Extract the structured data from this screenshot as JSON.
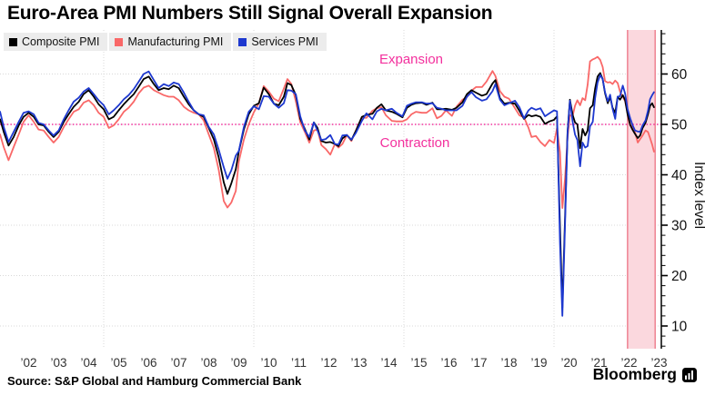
{
  "footer": {
    "source": "Source: S&P Global and Hamburg Commercial Bank",
    "brand": "Bloomberg"
  },
  "chart_data": {
    "type": "line",
    "title": "Euro-Area PMI Numbers Still Signal Overall Expansion",
    "ylabel": "Index level",
    "ylim": [
      5,
      69
    ],
    "yticks": [
      10,
      20,
      30,
      40,
      50,
      60
    ],
    "x_gridline_years": [
      2005,
      2010,
      2015,
      2020
    ],
    "xtick_labels": [
      "’02",
      "’03",
      "’04",
      "’05",
      "’06",
      "’07",
      "’08",
      "’09",
      "’10",
      "’11",
      "’12",
      "’13",
      "’14",
      "’15",
      "’16",
      "’17",
      "’18",
      "’19",
      "’20",
      "’21",
      "’22",
      "’23"
    ],
    "xtick_start_year": 2002,
    "threshold": {
      "value": 50,
      "label_above": "Expansion",
      "label_below": "Contraction"
    },
    "highlight_band": {
      "x_start": 2022.45,
      "x_end": 2023.37
    },
    "colors": {
      "magenta": "#f3309d",
      "grid": "#d8d8d8",
      "band_fill": "#fbd8de",
      "band_edge": "#ee8292",
      "axis": "#000000",
      "legend_bg": "#ececec"
    },
    "series": [
      {
        "name": "Composite PMI",
        "color": "#000000"
      },
      {
        "name": "Manufacturing PMI",
        "color": "#f96868"
      },
      {
        "name": "Services PMI",
        "color": "#1d38cf"
      }
    ],
    "points_format": [
      "year",
      "composite",
      "manufacturing",
      "services"
    ],
    "points": [
      [
        2001.55,
        51.0,
        48.0,
        52.5
      ],
      [
        2001.67,
        48.5,
        45.5,
        49.5
      ],
      [
        2001.83,
        45.8,
        42.9,
        46.5
      ],
      [
        2002.0,
        47.5,
        45.5,
        48.5
      ],
      [
        2002.17,
        49.8,
        48.0,
        50.5
      ],
      [
        2002.33,
        51.5,
        50.5,
        52.3
      ],
      [
        2002.5,
        52.3,
        51.8,
        52.6
      ],
      [
        2002.67,
        51.5,
        50.5,
        52.0
      ],
      [
        2002.83,
        50.0,
        49.0,
        50.3
      ],
      [
        2003.0,
        49.8,
        48.8,
        50.0
      ],
      [
        2003.17,
        48.5,
        47.5,
        48.8
      ],
      [
        2003.33,
        47.5,
        46.4,
        47.8
      ],
      [
        2003.5,
        48.5,
        47.5,
        48.8
      ],
      [
        2003.67,
        50.5,
        49.5,
        51.0
      ],
      [
        2003.83,
        52.0,
        51.0,
        52.8
      ],
      [
        2004.0,
        53.5,
        52.5,
        54.5
      ],
      [
        2004.17,
        54.5,
        53.0,
        55.3
      ],
      [
        2004.33,
        56.0,
        54.3,
        56.5
      ],
      [
        2004.5,
        56.8,
        54.8,
        57.2
      ],
      [
        2004.67,
        55.5,
        53.8,
        56.0
      ],
      [
        2004.83,
        54.0,
        52.3,
        54.8
      ],
      [
        2005.0,
        53.0,
        51.5,
        53.8
      ],
      [
        2005.17,
        51.0,
        49.3,
        52.0
      ],
      [
        2005.33,
        51.5,
        49.8,
        52.8
      ],
      [
        2005.5,
        52.8,
        51.0,
        53.8
      ],
      [
        2005.67,
        54.0,
        52.5,
        55.0
      ],
      [
        2005.83,
        55.0,
        53.3,
        55.8
      ],
      [
        2006.0,
        56.0,
        54.5,
        57.0
      ],
      [
        2006.17,
        57.5,
        56.2,
        58.5
      ],
      [
        2006.33,
        59.0,
        57.3,
        60.0
      ],
      [
        2006.5,
        59.5,
        57.7,
        60.5
      ],
      [
        2006.67,
        58.0,
        56.8,
        58.8
      ],
      [
        2006.83,
        56.8,
        56.3,
        57.2
      ],
      [
        2007.0,
        57.2,
        55.8,
        58.0
      ],
      [
        2007.17,
        57.0,
        55.5,
        57.6
      ],
      [
        2007.33,
        57.7,
        55.5,
        58.3
      ],
      [
        2007.5,
        57.2,
        54.8,
        58.0
      ],
      [
        2007.67,
        55.5,
        53.5,
        56.3
      ],
      [
        2007.83,
        54.0,
        52.8,
        54.5
      ],
      [
        2008.0,
        52.8,
        52.3,
        52.8
      ],
      [
        2008.17,
        52.0,
        52.0,
        52.0
      ],
      [
        2008.33,
        51.5,
        50.8,
        51.8
      ],
      [
        2008.5,
        49.3,
        48.0,
        49.5
      ],
      [
        2008.67,
        47.0,
        45.3,
        48.0
      ],
      [
        2008.83,
        43.5,
        41.0,
        45.0
      ],
      [
        2009.0,
        38.5,
        34.8,
        41.5
      ],
      [
        2009.12,
        36.2,
        33.5,
        39.2
      ],
      [
        2009.25,
        38.3,
        34.5,
        40.9
      ],
      [
        2009.4,
        41.1,
        36.8,
        43.8
      ],
      [
        2009.5,
        44.6,
        42.6,
        44.7
      ],
      [
        2009.67,
        49.0,
        47.0,
        49.5
      ],
      [
        2009.83,
        52.0,
        50.0,
        52.5
      ],
      [
        2010.0,
        53.7,
        52.4,
        53.6
      ],
      [
        2010.17,
        54.2,
        54.2,
        53.0
      ],
      [
        2010.33,
        57.3,
        57.6,
        55.6
      ],
      [
        2010.5,
        56.0,
        56.5,
        55.5
      ],
      [
        2010.67,
        54.1,
        55.1,
        54.1
      ],
      [
        2010.83,
        53.8,
        54.6,
        53.3
      ],
      [
        2011.0,
        55.5,
        57.1,
        54.2
      ],
      [
        2011.12,
        58.2,
        59.0,
        56.8
      ],
      [
        2011.25,
        57.8,
        58.0,
        56.7
      ],
      [
        2011.4,
        55.8,
        54.6,
        56.0
      ],
      [
        2011.55,
        51.1,
        50.4,
        51.6
      ],
      [
        2011.7,
        49.1,
        48.5,
        48.8
      ],
      [
        2011.85,
        47.0,
        46.4,
        47.5
      ],
      [
        2012.0,
        50.4,
        48.8,
        50.4
      ],
      [
        2012.12,
        49.3,
        49.0,
        48.8
      ],
      [
        2012.25,
        46.7,
        45.9,
        46.9
      ],
      [
        2012.4,
        46.4,
        45.1,
        47.1
      ],
      [
        2012.55,
        46.5,
        44.0,
        47.9
      ],
      [
        2012.7,
        46.1,
        46.1,
        46.1
      ],
      [
        2012.82,
        45.7,
        45.4,
        46.0
      ],
      [
        2012.95,
        47.2,
        46.1,
        47.8
      ],
      [
        2013.1,
        47.9,
        47.9,
        47.9
      ],
      [
        2013.25,
        46.9,
        46.7,
        47.0
      ],
      [
        2013.4,
        48.7,
        48.8,
        48.3
      ],
      [
        2013.6,
        51.5,
        51.4,
        50.7
      ],
      [
        2013.75,
        51.9,
        51.3,
        52.2
      ],
      [
        2013.95,
        52.1,
        52.7,
        51.0
      ],
      [
        2014.1,
        53.3,
        53.2,
        52.6
      ],
      [
        2014.25,
        54.0,
        53.4,
        53.1
      ],
      [
        2014.4,
        52.8,
        51.8,
        52.8
      ],
      [
        2014.6,
        52.5,
        50.7,
        53.1
      ],
      [
        2014.75,
        52.1,
        50.6,
        52.3
      ],
      [
        2014.95,
        51.4,
        50.6,
        51.6
      ],
      [
        2015.1,
        53.3,
        51.0,
        53.7
      ],
      [
        2015.25,
        53.9,
        52.0,
        54.1
      ],
      [
        2015.4,
        54.2,
        52.5,
        54.4
      ],
      [
        2015.6,
        54.3,
        52.3,
        54.4
      ],
      [
        2015.75,
        53.9,
        52.3,
        54.1
      ],
      [
        2015.95,
        54.3,
        53.2,
        54.2
      ],
      [
        2016.1,
        53.0,
        51.2,
        53.3
      ],
      [
        2016.25,
        53.0,
        51.7,
        53.1
      ],
      [
        2016.4,
        53.1,
        52.8,
        52.8
      ],
      [
        2016.6,
        52.9,
        51.7,
        52.8
      ],
      [
        2016.75,
        53.3,
        53.5,
        52.8
      ],
      [
        2016.95,
        54.4,
        54.9,
        53.7
      ],
      [
        2017.1,
        56.0,
        55.4,
        55.5
      ],
      [
        2017.25,
        56.8,
        56.7,
        56.4
      ],
      [
        2017.4,
        56.3,
        57.4,
        55.4
      ],
      [
        2017.6,
        55.7,
        57.4,
        54.7
      ],
      [
        2017.75,
        56.0,
        58.5,
        55.0
      ],
      [
        2017.95,
        58.1,
        60.6,
        56.6
      ],
      [
        2018.05,
        58.8,
        59.6,
        58.0
      ],
      [
        2018.2,
        55.2,
        56.6,
        54.9
      ],
      [
        2018.35,
        54.1,
        55.5,
        53.8
      ],
      [
        2018.5,
        54.3,
        55.1,
        54.2
      ],
      [
        2018.7,
        54.1,
        53.2,
        54.7
      ],
      [
        2018.85,
        52.7,
        51.8,
        53.4
      ],
      [
        2019.0,
        51.1,
        51.4,
        51.2
      ],
      [
        2019.15,
        51.9,
        49.3,
        52.8
      ],
      [
        2019.25,
        51.6,
        47.5,
        53.3
      ],
      [
        2019.4,
        51.8,
        47.7,
        52.9
      ],
      [
        2019.55,
        51.5,
        46.5,
        53.2
      ],
      [
        2019.7,
        50.1,
        45.7,
        51.6
      ],
      [
        2019.85,
        50.6,
        46.9,
        52.2
      ],
      [
        2020.0,
        50.9,
        46.3,
        52.8
      ],
      [
        2020.1,
        51.6,
        49.2,
        52.6
      ],
      [
        2020.2,
        29.7,
        44.5,
        26.4
      ],
      [
        2020.28,
        13.6,
        33.4,
        12.0
      ],
      [
        2020.37,
        31.9,
        39.4,
        30.5
      ],
      [
        2020.45,
        48.5,
        47.4,
        48.3
      ],
      [
        2020.53,
        54.9,
        51.8,
        54.7
      ],
      [
        2020.62,
        51.9,
        51.7,
        50.5
      ],
      [
        2020.7,
        50.4,
        53.7,
        48.0
      ],
      [
        2020.78,
        50.0,
        54.8,
        46.9
      ],
      [
        2020.87,
        45.3,
        53.8,
        41.7
      ],
      [
        2020.95,
        49.1,
        55.2,
        46.4
      ],
      [
        2021.04,
        47.8,
        54.8,
        45.4
      ],
      [
        2021.12,
        48.8,
        57.9,
        45.7
      ],
      [
        2021.2,
        53.2,
        62.5,
        49.6
      ],
      [
        2021.29,
        53.8,
        62.9,
        50.5
      ],
      [
        2021.37,
        57.1,
        63.1,
        55.2
      ],
      [
        2021.45,
        59.5,
        63.4,
        58.3
      ],
      [
        2021.54,
        60.2,
        62.8,
        59.8
      ],
      [
        2021.62,
        59.0,
        61.4,
        59.0
      ],
      [
        2021.7,
        56.2,
        58.6,
        56.4
      ],
      [
        2021.79,
        54.2,
        58.3,
        54.6
      ],
      [
        2021.87,
        55.4,
        58.4,
        55.9
      ],
      [
        2021.95,
        53.3,
        58.0,
        53.1
      ],
      [
        2022.04,
        52.3,
        58.7,
        51.1
      ],
      [
        2022.12,
        55.5,
        58.2,
        55.5
      ],
      [
        2022.2,
        54.9,
        56.5,
        55.6
      ],
      [
        2022.29,
        55.8,
        55.5,
        57.7
      ],
      [
        2022.37,
        54.8,
        54.6,
        56.1
      ],
      [
        2022.45,
        52.0,
        52.1,
        53.0
      ],
      [
        2022.54,
        49.9,
        49.8,
        51.2
      ],
      [
        2022.62,
        48.9,
        49.6,
        49.8
      ],
      [
        2022.7,
        48.1,
        48.4,
        48.8
      ],
      [
        2022.79,
        47.3,
        46.4,
        48.6
      ],
      [
        2022.87,
        47.8,
        47.1,
        48.5
      ],
      [
        2022.95,
        49.3,
        47.8,
        49.8
      ],
      [
        2023.05,
        50.3,
        48.8,
        50.8
      ],
      [
        2023.13,
        52.0,
        48.5,
        52.7
      ],
      [
        2023.2,
        53.7,
        47.3,
        55.0
      ],
      [
        2023.27,
        54.2,
        46.0,
        55.8
      ],
      [
        2023.33,
        53.4,
        44.6,
        56.4
      ]
    ]
  }
}
